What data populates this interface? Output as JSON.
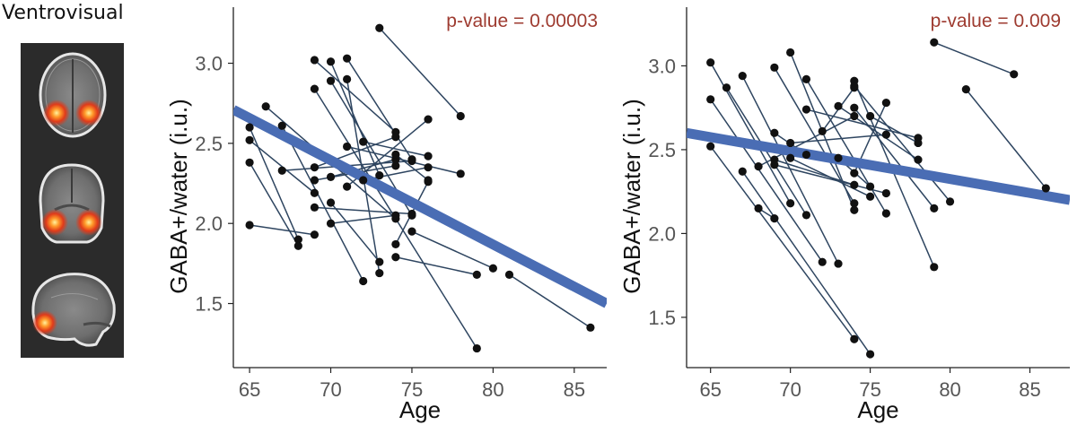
{
  "region_label": "Ventrovisual",
  "brain_views": [
    "axial",
    "coronal",
    "sagittal"
  ],
  "chart_data": [
    {
      "type": "scatter",
      "xlabel": "Age",
      "ylabel": "GABA+/water (i.u.)",
      "annotation": "p-value = 0.00003",
      "xlim": [
        64,
        87
      ],
      "ylim": [
        1.1,
        3.35
      ],
      "xticks": [
        65,
        70,
        75,
        80,
        85
      ],
      "yticks": [
        1.5,
        2.0,
        2.5,
        3.0
      ],
      "grid": false,
      "colors": {
        "points": "#111111",
        "lines": "#2e4560",
        "fit": "#4a6db4",
        "annotation": "#9e3b30"
      },
      "fit": {
        "x": [
          64,
          87
        ],
        "y": [
          2.71,
          1.5
        ]
      },
      "pairs": [
        [
          [
            73,
            3.22
          ],
          [
            78,
            2.67
          ]
        ],
        [
          [
            71,
            3.03
          ],
          [
            75,
            2.4
          ]
        ],
        [
          [
            69,
            3.02
          ],
          [
            74,
            2.57
          ]
        ],
        [
          [
            70,
            3.01
          ],
          [
            73,
            2.3
          ]
        ],
        [
          [
            69,
            2.84
          ],
          [
            79,
            1.22
          ]
        ],
        [
          [
            70,
            2.89
          ],
          [
            75,
            2.05
          ]
        ],
        [
          [
            71,
            2.9
          ],
          [
            73,
            1.69
          ]
        ],
        [
          [
            66,
            2.73
          ],
          [
            74,
            2.03
          ]
        ],
        [
          [
            65,
            2.6
          ],
          [
            68,
            1.9
          ]
        ],
        [
          [
            67,
            2.61
          ],
          [
            72,
            1.64
          ]
        ],
        [
          [
            65,
            2.52
          ],
          [
            69,
            2.19
          ]
        ],
        [
          [
            65,
            2.38
          ],
          [
            68,
            1.86
          ]
        ],
        [
          [
            65,
            1.99
          ],
          [
            69,
            1.93
          ]
        ],
        [
          [
            67,
            2.33
          ],
          [
            75,
            2.39
          ]
        ],
        [
          [
            69,
            2.35
          ],
          [
            74,
            2.54
          ]
        ],
        [
          [
            69,
            2.27
          ],
          [
            74,
            2.36
          ]
        ],
        [
          [
            69,
            2.1
          ],
          [
            75,
            2.06
          ]
        ],
        [
          [
            70,
            2.29
          ],
          [
            74,
            2.4
          ]
        ],
        [
          [
            71,
            2.23
          ],
          [
            76,
            2.65
          ]
        ],
        [
          [
            71,
            2.48
          ],
          [
            78,
            2.31
          ]
        ],
        [
          [
            72,
            2.51
          ],
          [
            76,
            2.42
          ]
        ],
        [
          [
            70,
            2.0
          ],
          [
            74,
            2.05
          ]
        ],
        [
          [
            72,
            2.27
          ],
          [
            76,
            2.35
          ]
        ],
        [
          [
            70,
            2.13
          ],
          [
            73,
            1.76
          ]
        ],
        [
          [
            74,
            2.43
          ],
          [
            76,
            2.27
          ]
        ],
        [
          [
            74,
            1.87
          ],
          [
            76,
            2.26
          ]
        ],
        [
          [
            74,
            1.79
          ],
          [
            79,
            1.68
          ]
        ],
        [
          [
            75,
            1.95
          ],
          [
            80,
            1.72
          ]
        ],
        [
          [
            81,
            1.68
          ],
          [
            86,
            1.35
          ]
        ]
      ]
    },
    {
      "type": "scatter",
      "xlabel": "Age",
      "ylabel": "GABA+/water (i.u.)",
      "annotation": "p-value = 0.009",
      "xlim": [
        63.5,
        87.5
      ],
      "ylim": [
        1.2,
        3.35
      ],
      "xticks": [
        65,
        70,
        75,
        80,
        85
      ],
      "yticks": [
        1.5,
        2.0,
        2.5,
        3.0
      ],
      "grid": false,
      "colors": {
        "points": "#111111",
        "lines": "#2e4560",
        "fit": "#4a6db4",
        "annotation": "#9e3b30"
      },
      "fit": {
        "x": [
          63.5,
          87.5
        ],
        "y": [
          2.6,
          2.2
        ]
      },
      "pairs": [
        [
          [
            65,
            3.02
          ],
          [
            70,
            2.18
          ]
        ],
        [
          [
            65,
            2.8
          ],
          [
            72,
            1.83
          ]
        ],
        [
          [
            65,
            2.52
          ],
          [
            74,
            1.37
          ]
        ],
        [
          [
            66,
            2.87
          ],
          [
            71,
            2.11
          ]
        ],
        [
          [
            67,
            2.94
          ],
          [
            73,
            1.82
          ]
        ],
        [
          [
            67,
            2.37
          ],
          [
            75,
            1.28
          ]
        ],
        [
          [
            68,
            2.15
          ],
          [
            69,
            2.09
          ]
        ],
        [
          [
            69,
            2.99
          ],
          [
            74,
            2.18
          ]
        ],
        [
          [
            69,
            2.6
          ],
          [
            71,
            2.47
          ]
        ],
        [
          [
            69,
            2.44
          ],
          [
            74,
            2.29
          ]
        ],
        [
          [
            69,
            2.41
          ],
          [
            76,
            2.24
          ]
        ],
        [
          [
            68,
            2.4
          ],
          [
            74,
            2.7
          ]
        ],
        [
          [
            70,
            3.08
          ],
          [
            74,
            2.14
          ]
        ],
        [
          [
            70,
            2.54
          ],
          [
            76,
            2.59
          ]
        ],
        [
          [
            70,
            2.45
          ],
          [
            75,
            2.22
          ]
        ],
        [
          [
            71,
            2.92
          ],
          [
            76,
            2.12
          ]
        ],
        [
          [
            71,
            2.74
          ],
          [
            78,
            2.57
          ]
        ],
        [
          [
            72,
            2.61
          ],
          [
            74,
            2.87
          ]
        ],
        [
          [
            73,
            2.76
          ],
          [
            78,
            2.44
          ]
        ],
        [
          [
            74,
            2.91
          ],
          [
            79,
            1.8
          ]
        ],
        [
          [
            74,
            2.88
          ],
          [
            80,
            2.19
          ]
        ],
        [
          [
            74,
            2.75
          ],
          [
            79,
            2.15
          ]
        ],
        [
          [
            75,
            2.7
          ],
          [
            78,
            2.54
          ]
        ],
        [
          [
            74,
            2.36
          ],
          [
            76,
            2.78
          ]
        ],
        [
          [
            75,
            2.28
          ],
          [
            73,
            2.45
          ]
        ],
        [
          [
            79,
            3.14
          ],
          [
            84,
            2.95
          ]
        ],
        [
          [
            81,
            2.86
          ],
          [
            86,
            2.27
          ]
        ]
      ]
    }
  ]
}
